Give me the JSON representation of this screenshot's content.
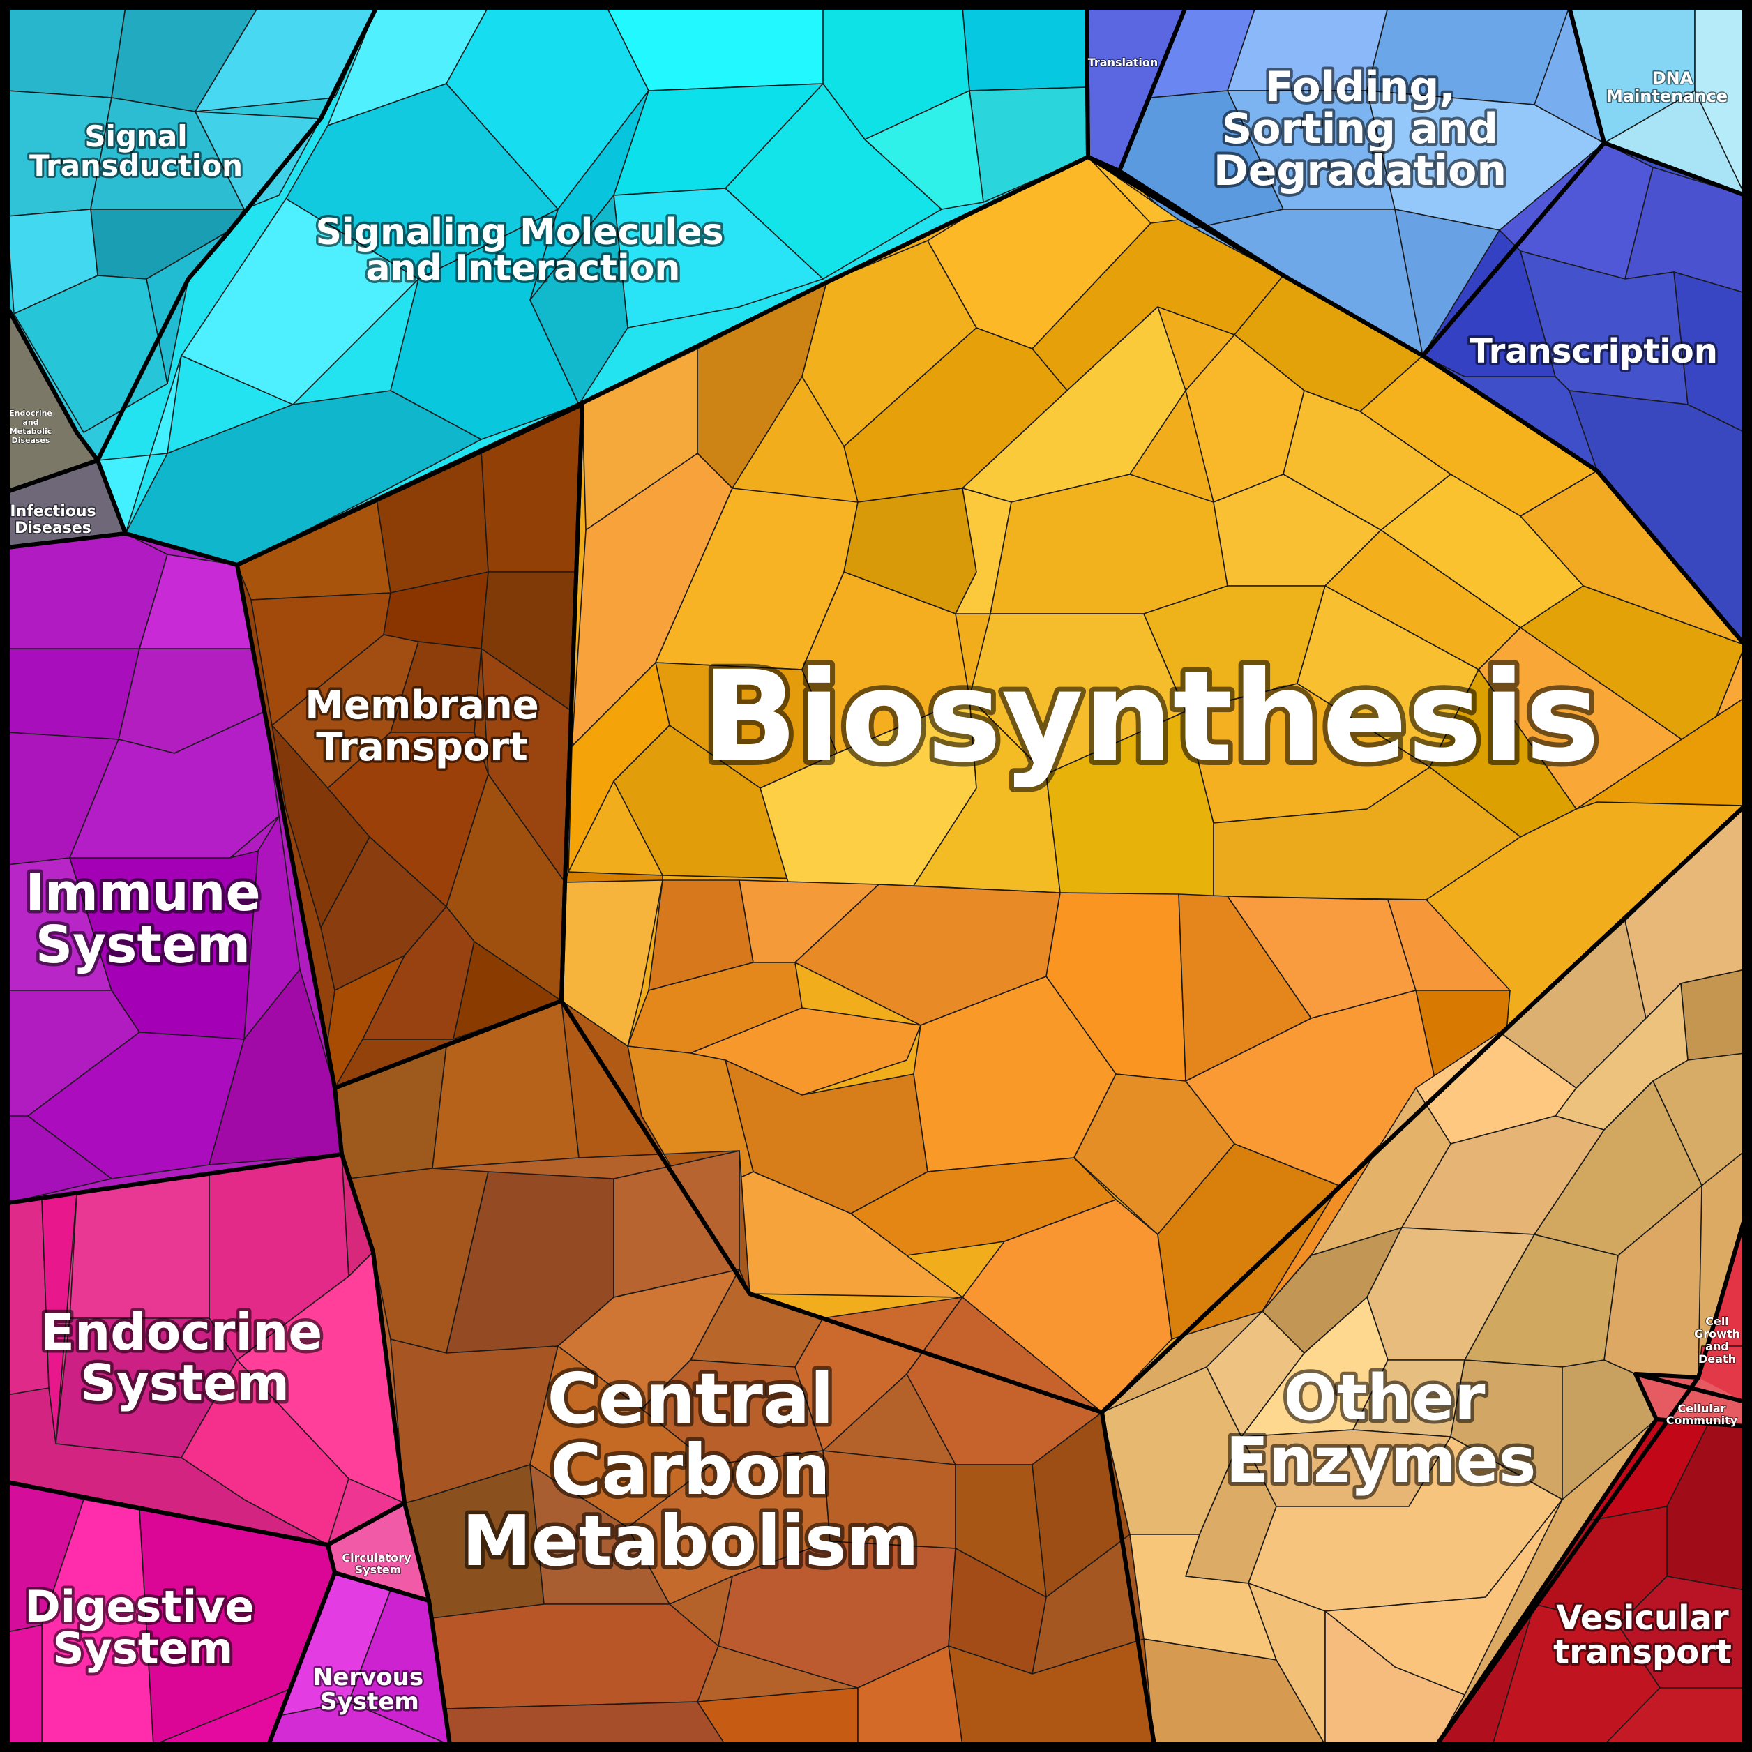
{
  "title": "",
  "regions": [
    {
      "id": "signal-transduction",
      "label": "Signal Transduction",
      "color": "#2ec9dc"
    },
    {
      "id": "signaling-molecules",
      "label": "Signaling Molecules and Interaction",
      "color": "#24e3f0"
    },
    {
      "id": "translation",
      "label": "Translation",
      "color": "#5a67e0"
    },
    {
      "id": "folding",
      "label": "Folding, Sorting and Degradation",
      "color": "#78aef0"
    },
    {
      "id": "dna-maintenance",
      "label": "DNA Maintenance",
      "color": "#a8e4f6"
    },
    {
      "id": "transcription",
      "label": "Transcription",
      "color": "#3f4ec9"
    },
    {
      "id": "endocrine-metabolic",
      "label": "Endocrine and Metabolic Diseases",
      "color": "#7b7868"
    },
    {
      "id": "infectious-diseases",
      "label": "Infectious Diseases",
      "color": "#6e6878"
    },
    {
      "id": "biosynthesis",
      "label": "Biosynthesis",
      "color": "#f1ad1c"
    },
    {
      "id": "membrane-transport",
      "label": "Membrane Transport",
      "color": "#93420c"
    },
    {
      "id": "immune-system",
      "label": "Immune System",
      "color": "#b01cbf"
    },
    {
      "id": "endocrine-system",
      "label": "Endocrine System",
      "color": "#ee3592"
    },
    {
      "id": "digestive-system",
      "label": "Digestive System",
      "color": "#ee23a6"
    },
    {
      "id": "circulatory-system",
      "label": "Circulatory System",
      "color": "#f05aa6"
    },
    {
      "id": "nervous-system",
      "label": "Nervous System",
      "color": "#d330d8"
    },
    {
      "id": "central-carbon",
      "label": "Central Carbon Metabolism",
      "color": "#b5612a"
    },
    {
      "id": "other-enzymes",
      "label": "Other Enzymes",
      "color": "#dcaa62"
    },
    {
      "id": "cell-growth",
      "label": "Cell Growth and Death",
      "color": "#e23848"
    },
    {
      "id": "cellular-community",
      "label": "Cellular Community",
      "color": "#e65a62"
    },
    {
      "id": "vesicular-transport",
      "label": "Vesicular transport",
      "color": "#b0101e"
    }
  ],
  "labels": {
    "signal_transduction_1": "Signal",
    "signal_transduction_2": "Transduction",
    "signaling_molecules_1": "Signaling Molecules",
    "signaling_molecules_2": "and Interaction",
    "translation": "Translation",
    "folding_1": "Folding,",
    "folding_2": "Sorting and",
    "folding_3": "Degradation",
    "dna_1": "DNA",
    "dna_2": "Maintenance",
    "transcription": "Transcription",
    "endo_met_1": "Endocrine",
    "endo_met_2": "and",
    "endo_met_3": "Metabolic",
    "endo_met_4": "Diseases",
    "infectious_1": "Infectious",
    "infectious_2": "Diseases",
    "biosynthesis": "Biosynthesis",
    "membrane_1": "Membrane",
    "membrane_2": "Transport",
    "immune_1": "Immune",
    "immune_2": "System",
    "endocrine_1": "Endocrine",
    "endocrine_2": "System",
    "digestive_1": "Digestive",
    "digestive_2": "System",
    "circulatory_1": "Circulatory",
    "circulatory_2": "System",
    "nervous_1": "Nervous",
    "nervous_2": "System",
    "central_1": "Central",
    "central_2": "Carbon",
    "central_3": "Metabolism",
    "other_1": "Other",
    "other_2": "Enzymes",
    "cellgrowth_1": "Cell",
    "cellgrowth_2": "Growth",
    "cellgrowth_3": "and",
    "cellgrowth_4": "Death",
    "cellcomm_1": "Cellular",
    "cellcomm_2": "Community",
    "vesicular_1": "Vesicular",
    "vesicular_2": "transport"
  }
}
